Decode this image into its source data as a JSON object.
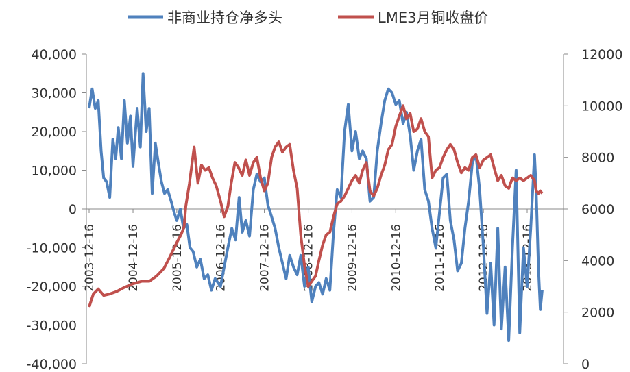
{
  "chart_data": {
    "type": "line",
    "title": "",
    "legend_position": "top",
    "grid": false,
    "x_tick_labels": [
      "2003-12-16",
      "2004-12-16",
      "2005-12-16",
      "2006-12-16",
      "2007-12-16",
      "2008-12-16",
      "2009-12-16",
      "2010-12-16",
      "2011-12-16",
      "2012-12-16",
      "2013-12-16"
    ],
    "y_left": {
      "range": [
        -40000,
        40000
      ],
      "ticks": [
        40000,
        30000,
        20000,
        10000,
        0,
        -10000,
        -20000,
        -30000,
        -40000
      ],
      "tick_labels": [
        "40,000",
        "30,000",
        "20,000",
        "10,000",
        "0",
        "-10,000",
        "-20,000",
        "-30,000",
        "-40,000"
      ]
    },
    "y_right": {
      "range": [
        0,
        12000
      ],
      "ticks": [
        12000,
        10000,
        8000,
        6000,
        4000,
        2000,
        0
      ],
      "tick_labels": [
        "12000",
        "10000",
        "8000",
        "6000",
        "4000",
        "2000",
        "0"
      ]
    },
    "series": [
      {
        "name": "非商业持仓净多头",
        "axis": "left",
        "color": "#4F81BD",
        "points": [
          [
            "2003-12-16",
            26000
          ],
          [
            "2004-01-10",
            31000
          ],
          [
            "2004-02-05",
            26000
          ],
          [
            "2004-03-01",
            28000
          ],
          [
            "2004-03-25",
            15000
          ],
          [
            "2004-04-15",
            8000
          ],
          [
            "2004-05-10",
            7000
          ],
          [
            "2004-06-05",
            3000
          ],
          [
            "2004-07-01",
            18000
          ],
          [
            "2004-07-25",
            13000
          ],
          [
            "2004-08-15",
            21000
          ],
          [
            "2004-09-10",
            13000
          ],
          [
            "2004-10-05",
            28000
          ],
          [
            "2004-10-30",
            17000
          ],
          [
            "2004-11-25",
            24000
          ],
          [
            "2004-12-16",
            11000
          ],
          [
            "2005-01-20",
            26000
          ],
          [
            "2005-02-15",
            16000
          ],
          [
            "2005-03-10",
            35000
          ],
          [
            "2005-04-05",
            20000
          ],
          [
            "2005-04-30",
            26000
          ],
          [
            "2005-05-25",
            4000
          ],
          [
            "2005-06-20",
            17000
          ],
          [
            "2005-07-15",
            12000
          ],
          [
            "2005-08-10",
            7000
          ],
          [
            "2005-09-05",
            4000
          ],
          [
            "2005-10-01",
            5000
          ],
          [
            "2005-10-30",
            2000
          ],
          [
            "2005-11-25",
            -1000
          ],
          [
            "2005-12-16",
            -3000
          ],
          [
            "2006-01-15",
            0
          ],
          [
            "2006-02-10",
            -5000
          ],
          [
            "2006-03-10",
            -4000
          ],
          [
            "2006-04-05",
            -10000
          ],
          [
            "2006-05-01",
            -11000
          ],
          [
            "2006-06-01",
            -15000
          ],
          [
            "2006-07-01",
            -13000
          ],
          [
            "2006-08-01",
            -18000
          ],
          [
            "2006-09-01",
            -17000
          ],
          [
            "2006-10-01",
            -21000
          ],
          [
            "2006-11-01",
            -18000
          ],
          [
            "2006-12-16",
            -20000
          ],
          [
            "2007-01-15",
            -15000
          ],
          [
            "2007-02-15",
            -10000
          ],
          [
            "2007-03-20",
            -5000
          ],
          [
            "2007-04-20",
            -8000
          ],
          [
            "2007-05-20",
            3000
          ],
          [
            "2007-06-15",
            -6000
          ],
          [
            "2007-07-15",
            -3000
          ],
          [
            "2007-08-15",
            -7000
          ],
          [
            "2007-09-15",
            5000
          ],
          [
            "2007-10-15",
            9000
          ],
          [
            "2007-11-15",
            7000
          ],
          [
            "2007-12-16",
            8000
          ],
          [
            "2008-01-15",
            1000
          ],
          [
            "2008-02-15",
            -2000
          ],
          [
            "2008-03-15",
            -5000
          ],
          [
            "2008-04-15",
            -10000
          ],
          [
            "2008-05-15",
            -14000
          ],
          [
            "2008-06-15",
            -18000
          ],
          [
            "2008-07-15",
            -12000
          ],
          [
            "2008-08-15",
            -15000
          ],
          [
            "2008-09-15",
            -17000
          ],
          [
            "2008-10-15",
            -12000
          ],
          [
            "2008-11-15",
            -20000
          ],
          [
            "2008-12-16",
            -15000
          ],
          [
            "2009-01-15",
            -24000
          ],
          [
            "2009-02-15",
            -20000
          ],
          [
            "2009-03-15",
            -19000
          ],
          [
            "2009-04-15",
            -22000
          ],
          [
            "2009-05-15",
            -18000
          ],
          [
            "2009-06-15",
            -21000
          ],
          [
            "2009-07-15",
            -6000
          ],
          [
            "2009-08-15",
            5000
          ],
          [
            "2009-09-15",
            3000
          ],
          [
            "2009-10-15",
            20000
          ],
          [
            "2009-11-15",
            27000
          ],
          [
            "2009-12-16",
            15000
          ],
          [
            "2010-01-15",
            20000
          ],
          [
            "2010-02-15",
            13000
          ],
          [
            "2010-03-15",
            15000
          ],
          [
            "2010-04-15",
            13000
          ],
          [
            "2010-05-15",
            2000
          ],
          [
            "2010-06-15",
            3000
          ],
          [
            "2010-07-15",
            15000
          ],
          [
            "2010-08-15",
            22000
          ],
          [
            "2010-09-15",
            28000
          ],
          [
            "2010-10-15",
            31000
          ],
          [
            "2010-11-15",
            30000
          ],
          [
            "2010-12-16",
            27000
          ],
          [
            "2011-01-15",
            28000
          ],
          [
            "2011-02-15",
            22000
          ],
          [
            "2011-03-15",
            25000
          ],
          [
            "2011-04-15",
            19000
          ],
          [
            "2011-05-15",
            10000
          ],
          [
            "2011-06-15",
            15000
          ],
          [
            "2011-07-15",
            18000
          ],
          [
            "2011-08-15",
            5000
          ],
          [
            "2011-09-15",
            2000
          ],
          [
            "2011-10-15",
            -5000
          ],
          [
            "2011-11-15",
            -10000
          ],
          [
            "2011-12-16",
            -1000
          ],
          [
            "2012-01-15",
            8000
          ],
          [
            "2012-02-15",
            9000
          ],
          [
            "2012-03-15",
            -3000
          ],
          [
            "2012-04-15",
            -8000
          ],
          [
            "2012-05-15",
            -16000
          ],
          [
            "2012-06-15",
            -14000
          ],
          [
            "2012-07-15",
            -5000
          ],
          [
            "2012-08-15",
            2000
          ],
          [
            "2012-09-15",
            12000
          ],
          [
            "2012-10-15",
            14000
          ],
          [
            "2012-11-15",
            5000
          ],
          [
            "2012-12-16",
            -10000
          ],
          [
            "2013-01-15",
            -27000
          ],
          [
            "2013-02-15",
            -14000
          ],
          [
            "2013-03-15",
            -30000
          ],
          [
            "2013-04-15",
            -5000
          ],
          [
            "2013-05-15",
            -31000
          ],
          [
            "2013-06-15",
            -15000
          ],
          [
            "2013-07-15",
            -34000
          ],
          [
            "2013-08-15",
            -10000
          ],
          [
            "2013-09-15",
            10000
          ],
          [
            "2013-10-15",
            -32000
          ],
          [
            "2013-11-15",
            -10000
          ],
          [
            "2013-12-16",
            -20000
          ],
          [
            "2014-01-15",
            -5000
          ],
          [
            "2014-02-15",
            14000
          ],
          [
            "2014-03-01",
            5000
          ],
          [
            "2014-03-20",
            -15000
          ],
          [
            "2014-04-05",
            -26000
          ],
          [
            "2014-04-20",
            -21000
          ]
        ]
      },
      {
        "name": "LME3月铜收盘价",
        "axis": "right",
        "color": "#C0504D",
        "points": [
          [
            "2003-12-16",
            2200
          ],
          [
            "2004-01-20",
            2700
          ],
          [
            "2004-03-01",
            2900
          ],
          [
            "2004-04-15",
            2650
          ],
          [
            "2004-06-01",
            2700
          ],
          [
            "2004-08-01",
            2800
          ],
          [
            "2004-10-01",
            2950
          ],
          [
            "2004-12-16",
            3100
          ],
          [
            "2005-03-01",
            3200
          ],
          [
            "2005-05-01",
            3200
          ],
          [
            "2005-07-01",
            3400
          ],
          [
            "2005-09-01",
            3700
          ],
          [
            "2005-10-15",
            4100
          ],
          [
            "2005-12-16",
            4700
          ],
          [
            "2006-01-20",
            5000
          ],
          [
            "2006-02-15",
            5300
          ],
          [
            "2006-03-01",
            6100
          ],
          [
            "2006-04-01",
            7000
          ],
          [
            "2006-05-10",
            8400
          ],
          [
            "2006-06-10",
            7000
          ],
          [
            "2006-07-10",
            7700
          ],
          [
            "2006-08-10",
            7500
          ],
          [
            "2006-09-10",
            7600
          ],
          [
            "2006-10-10",
            7200
          ],
          [
            "2006-11-10",
            6900
          ],
          [
            "2006-12-16",
            6300
          ],
          [
            "2007-01-15",
            5700
          ],
          [
            "2007-02-15",
            6100
          ],
          [
            "2007-03-15",
            7000
          ],
          [
            "2007-04-15",
            7800
          ],
          [
            "2007-05-15",
            7600
          ],
          [
            "2007-06-15",
            7300
          ],
          [
            "2007-07-15",
            7900
          ],
          [
            "2007-08-15",
            7300
          ],
          [
            "2007-09-15",
            7800
          ],
          [
            "2007-10-15",
            8000
          ],
          [
            "2007-11-15",
            7200
          ],
          [
            "2007-12-16",
            6700
          ],
          [
            "2008-01-15",
            7000
          ],
          [
            "2008-02-15",
            8000
          ],
          [
            "2008-03-15",
            8400
          ],
          [
            "2008-04-15",
            8600
          ],
          [
            "2008-05-15",
            8200
          ],
          [
            "2008-06-15",
            8400
          ],
          [
            "2008-07-15",
            8500
          ],
          [
            "2008-08-15",
            7500
          ],
          [
            "2008-09-15",
            6800
          ],
          [
            "2008-10-15",
            5000
          ],
          [
            "2008-11-15",
            3800
          ],
          [
            "2008-12-16",
            3000
          ],
          [
            "2009-01-15",
            3200
          ],
          [
            "2009-02-15",
            3400
          ],
          [
            "2009-03-15",
            4000
          ],
          [
            "2009-04-15",
            4600
          ],
          [
            "2009-05-15",
            5000
          ],
          [
            "2009-06-15",
            5100
          ],
          [
            "2009-07-15",
            5700
          ],
          [
            "2009-08-15",
            6200
          ],
          [
            "2009-09-15",
            6300
          ],
          [
            "2009-10-15",
            6500
          ],
          [
            "2009-11-15",
            6800
          ],
          [
            "2009-12-16",
            7100
          ],
          [
            "2010-01-15",
            7300
          ],
          [
            "2010-02-15",
            7000
          ],
          [
            "2010-03-15",
            7500
          ],
          [
            "2010-04-15",
            7800
          ],
          [
            "2010-05-15",
            6700
          ],
          [
            "2010-06-15",
            6500
          ],
          [
            "2010-07-15",
            6800
          ],
          [
            "2010-08-15",
            7300
          ],
          [
            "2010-09-15",
            7700
          ],
          [
            "2010-10-15",
            8300
          ],
          [
            "2010-11-15",
            8500
          ],
          [
            "2010-12-16",
            9200
          ],
          [
            "2011-01-15",
            9600
          ],
          [
            "2011-02-15",
            10000
          ],
          [
            "2011-03-15",
            9500
          ],
          [
            "2011-04-15",
            9700
          ],
          [
            "2011-05-15",
            9000
          ],
          [
            "2011-06-15",
            9100
          ],
          [
            "2011-07-15",
            9500
          ],
          [
            "2011-08-15",
            9000
          ],
          [
            "2011-09-15",
            8800
          ],
          [
            "2011-10-15",
            7200
          ],
          [
            "2011-11-15",
            7500
          ],
          [
            "2011-12-16",
            7600
          ],
          [
            "2012-01-15",
            8000
          ],
          [
            "2012-02-15",
            8300
          ],
          [
            "2012-03-15",
            8500
          ],
          [
            "2012-04-15",
            8300
          ],
          [
            "2012-05-15",
            7800
          ],
          [
            "2012-06-15",
            7400
          ],
          [
            "2012-07-15",
            7600
          ],
          [
            "2012-08-15",
            7500
          ],
          [
            "2012-09-15",
            8000
          ],
          [
            "2012-10-15",
            8100
          ],
          [
            "2012-11-15",
            7600
          ],
          [
            "2012-12-16",
            7900
          ],
          [
            "2013-01-15",
            8000
          ],
          [
            "2013-02-15",
            8100
          ],
          [
            "2013-03-15",
            7600
          ],
          [
            "2013-04-15",
            7100
          ],
          [
            "2013-05-15",
            7300
          ],
          [
            "2013-06-15",
            6900
          ],
          [
            "2013-07-15",
            6800
          ],
          [
            "2013-08-15",
            7200
          ],
          [
            "2013-09-15",
            7100
          ],
          [
            "2013-10-15",
            7200
          ],
          [
            "2013-11-15",
            7100
          ],
          [
            "2013-12-16",
            7200
          ],
          [
            "2014-01-15",
            7300
          ],
          [
            "2014-02-15",
            7100
          ],
          [
            "2014-03-01",
            6700
          ],
          [
            "2014-03-20",
            6600
          ],
          [
            "2014-04-05",
            6700
          ],
          [
            "2014-04-20",
            6600
          ]
        ]
      }
    ]
  }
}
